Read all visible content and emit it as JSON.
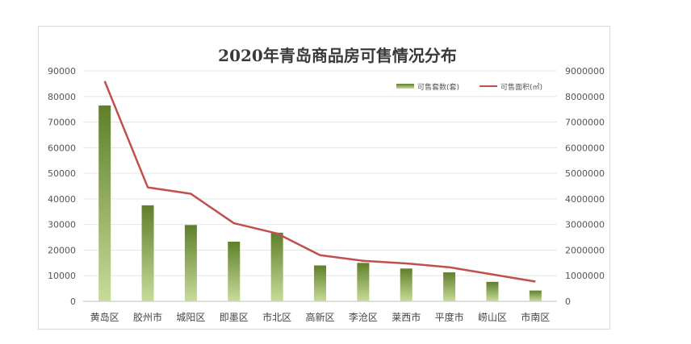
{
  "chart_data": {
    "type": "bar",
    "title": "2020年青岛商品房可售情况分布",
    "categories": [
      "黄岛区",
      "胶州市",
      "城阳区",
      "即墨区",
      "市北区",
      "高新区",
      "李沧区",
      "莱西市",
      "平度市",
      "崂山区",
      "市南区"
    ],
    "series": [
      {
        "name": "可售套数(套)",
        "type": "bar",
        "axis": "left",
        "color": "#7a9a3a",
        "values": [
          76500,
          37500,
          29800,
          23300,
          26800,
          14000,
          15000,
          12800,
          11300,
          7600,
          4200
        ]
      },
      {
        "name": "可售面积(㎡)",
        "type": "line",
        "axis": "right",
        "color": "#c0504d",
        "values": [
          8600000,
          4450000,
          4200000,
          3050000,
          2650000,
          1800000,
          1580000,
          1480000,
          1330000,
          1050000,
          770000
        ]
      }
    ],
    "y_left": {
      "min": 0,
      "max": 90000,
      "step": 10000,
      "ticks": [
        "0",
        "10000",
        "20000",
        "30000",
        "40000",
        "50000",
        "60000",
        "70000",
        "80000",
        "90000"
      ]
    },
    "y_right": {
      "min": 0,
      "max": 9000000,
      "step": 1000000,
      "ticks": [
        "0",
        "1000000",
        "2000000",
        "3000000",
        "4000000",
        "5000000",
        "6000000",
        "7000000",
        "8000000",
        "9000000"
      ]
    },
    "grid": true,
    "legend_position": "top-right"
  }
}
